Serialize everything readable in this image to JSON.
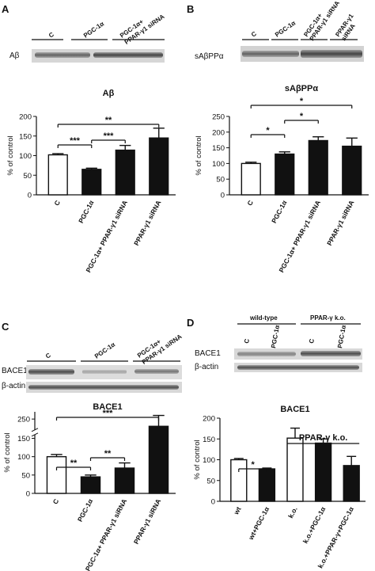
{
  "panel_letters": [
    "A",
    "B",
    "C",
    "D"
  ],
  "blots": [
    {
      "panel": "A",
      "row_labels": [
        "Aβ"
      ],
      "lane_groups": [
        "C",
        "PGC-1α",
        "PGC-1α+\nPPAR-γ1 siRNA"
      ]
    },
    {
      "panel": "B",
      "row_labels": [
        "sAβPPα"
      ],
      "lane_groups": [
        "C",
        "PGC-1α",
        "PGC-1α+\nPPAR-γ1 siRNA",
        "PPAR-γ1\nsiRNA"
      ]
    },
    {
      "panel": "C",
      "row_labels": [
        "BACE1",
        "β-actin"
      ],
      "lane_groups": [
        "C",
        "PGC-1α",
        "PGC-1α+\nPPAR-γ1 siRNA"
      ]
    },
    {
      "panel": "D",
      "row_labels": [
        "BACE1",
        "β-actin"
      ],
      "group_headers": [
        "wild-type",
        "PPAR-γ k.o."
      ],
      "lane_groups": [
        "C",
        "PGC-1α",
        "C",
        "PGC-1α"
      ]
    }
  ],
  "chart_data": [
    {
      "panel": "A",
      "type": "bar",
      "title": "Aβ",
      "ylabel": "% of control",
      "categories": [
        "C",
        "PGC-1α",
        "PGC-1α+ PPAR-γ1 siRNA",
        "PPAR-γ1 siRNA"
      ],
      "values": [
        102,
        65,
        114,
        145
      ],
      "errors": [
        3,
        3,
        12,
        25
      ],
      "fill": [
        "white",
        "black",
        "black",
        "black"
      ],
      "ylim": [
        0,
        200
      ],
      "yticks": [
        0,
        50,
        100,
        150,
        200
      ],
      "significance": [
        {
          "from": 0,
          "to": 1,
          "label": "***"
        },
        {
          "from": 1,
          "to": 2,
          "label": "***"
        },
        {
          "from": 0,
          "to": 3,
          "label": "**"
        }
      ]
    },
    {
      "panel": "B",
      "type": "bar",
      "title": "sAβPPα",
      "ylabel": "% of control",
      "categories": [
        "C",
        "PGC-1α",
        "PGC-1α+ PPAR-γ1 siRNA",
        "PPAR-γ1 siRNA"
      ],
      "values": [
        100,
        130,
        173,
        155
      ],
      "errors": [
        4,
        7,
        12,
        26
      ],
      "fill": [
        "white",
        "black",
        "black",
        "black"
      ],
      "ylim": [
        0,
        250
      ],
      "yticks": [
        0,
        50,
        100,
        150,
        200,
        250
      ],
      "significance": [
        {
          "from": 0,
          "to": 1,
          "label": "*"
        },
        {
          "from": 1,
          "to": 2,
          "label": "*"
        },
        {
          "from": 0,
          "to": 3,
          "label": "*"
        }
      ]
    },
    {
      "panel": "C",
      "type": "bar",
      "title": "BACE1",
      "ylabel": "% of control",
      "categories": [
        "C",
        "PGC-1α",
        "PGC-1α+ PPAR-γ1 siRNA",
        "PPAR-γ1 siRNA"
      ],
      "values": [
        100,
        45,
        69,
        240
      ],
      "errors": [
        6,
        5,
        14,
        15
      ],
      "fill": [
        "white",
        "black",
        "black",
        "black"
      ],
      "ylim": [
        0,
        260
      ],
      "yticks": [
        0,
        50,
        100,
        150,
        200,
        250
      ],
      "axis_break": [
        160,
        235
      ],
      "significance": [
        {
          "from": 0,
          "to": 1,
          "label": "**"
        },
        {
          "from": 1,
          "to": 2,
          "label": "**"
        },
        {
          "from": 0,
          "to": 3,
          "label": "***"
        }
      ]
    },
    {
      "panel": "D",
      "type": "bar",
      "title": "BACE1",
      "ylabel": "% of control",
      "categories": [
        "wt",
        "wt+PGC-1α",
        "k.o.",
        "k.o.+PGC-1α",
        "k.o.+PPAR-γ+PGC-1α"
      ],
      "values": [
        100,
        78,
        152,
        140,
        86
      ],
      "errors": [
        3,
        2,
        24,
        10,
        22
      ],
      "fill": [
        "white",
        "black",
        "white",
        "black",
        "black"
      ],
      "ylim": [
        0,
        200
      ],
      "yticks": [
        0,
        50,
        100,
        150,
        200
      ],
      "group_label": "PPAR-γ k.o.",
      "significance": [
        {
          "from": 0,
          "to": 1,
          "label": "*"
        }
      ]
    }
  ]
}
